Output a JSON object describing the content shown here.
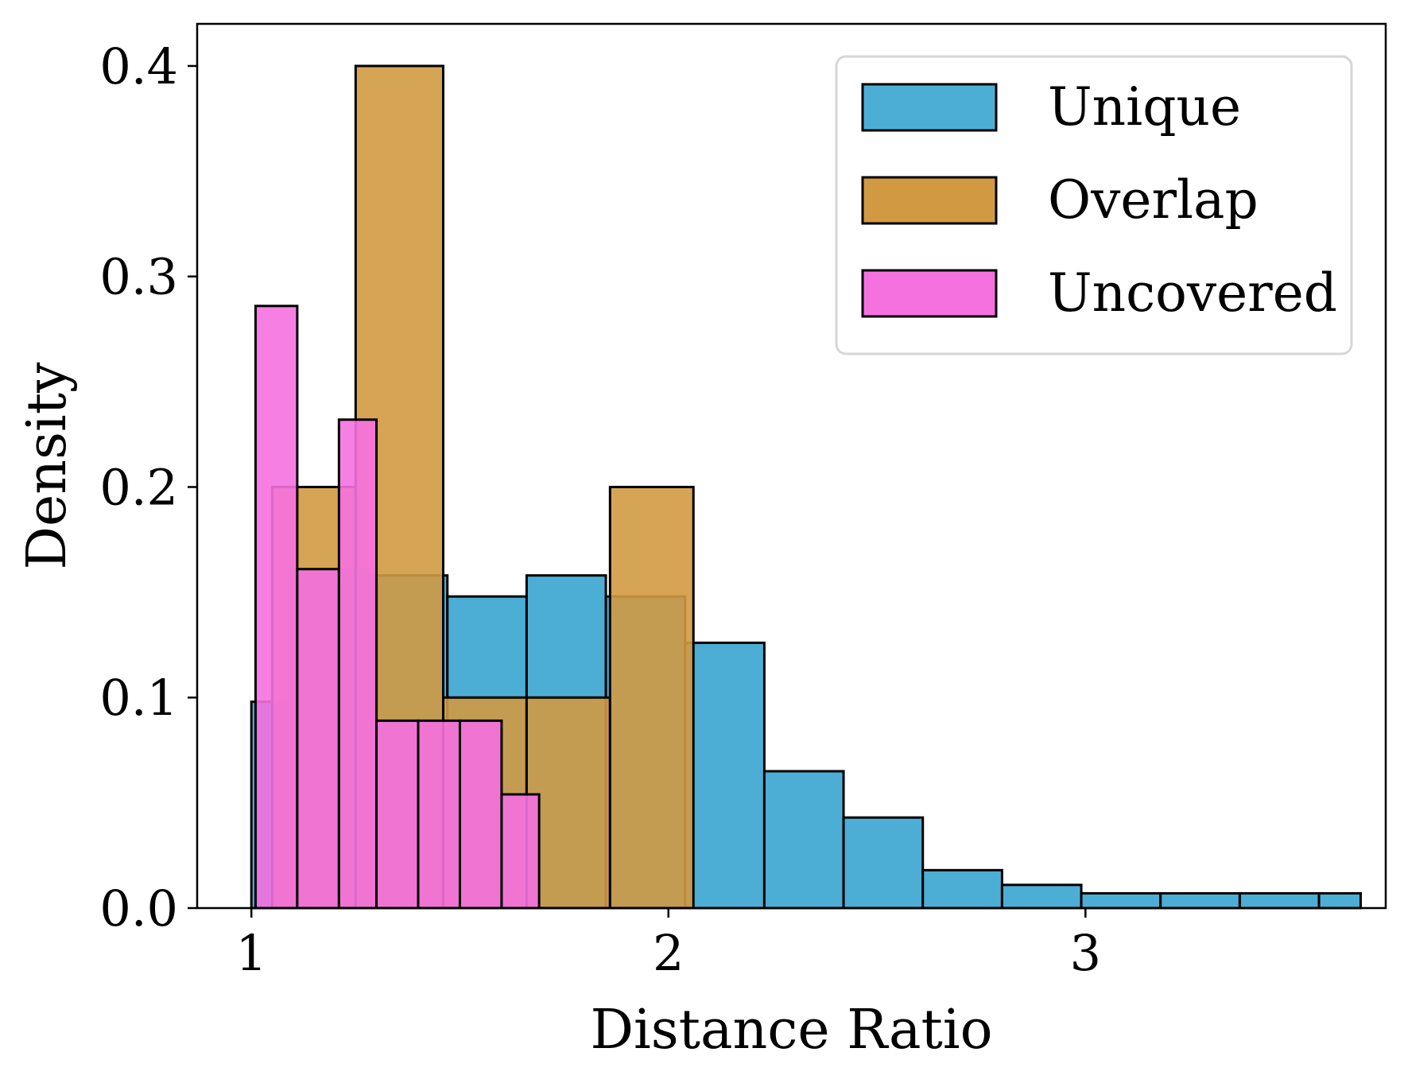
{
  "chart_data": {
    "type": "bar",
    "subtype": "histogram",
    "xlabel": "Distance Ratio",
    "ylabel": "Density",
    "xlim": [
      0.87,
      3.72
    ],
    "ylim": [
      0,
      0.42
    ],
    "xticks": [
      1,
      2,
      3
    ],
    "xtick_labels": [
      "1",
      "2",
      "3"
    ],
    "yticks": [
      0.0,
      0.1,
      0.2,
      0.3,
      0.4
    ],
    "ytick_labels": [
      "0.0",
      "0.1",
      "0.2",
      "0.3",
      "0.4"
    ],
    "grid": false,
    "legend_position": "top-right",
    "series": [
      {
        "name": "Unique",
        "color": "#4DAED5",
        "bins": [
          {
            "x0": 1.0,
            "x1": 1.09,
            "value": 0.098
          },
          {
            "x0": 1.09,
            "x1": 1.28,
            "value": 0.161
          },
          {
            "x0": 1.28,
            "x1": 1.47,
            "value": 0.158
          },
          {
            "x0": 1.47,
            "x1": 1.66,
            "value": 0.148
          },
          {
            "x0": 1.66,
            "x1": 1.85,
            "value": 0.158
          },
          {
            "x0": 1.85,
            "x1": 2.04,
            "value": 0.148
          },
          {
            "x0": 2.04,
            "x1": 2.23,
            "value": 0.126
          },
          {
            "x0": 2.23,
            "x1": 2.42,
            "value": 0.065
          },
          {
            "x0": 2.42,
            "x1": 2.61,
            "value": 0.043
          },
          {
            "x0": 2.61,
            "x1": 2.8,
            "value": 0.018
          },
          {
            "x0": 2.8,
            "x1": 2.99,
            "value": 0.011
          },
          {
            "x0": 2.99,
            "x1": 3.18,
            "value": 0.007
          },
          {
            "x0": 3.18,
            "x1": 3.37,
            "value": 0.007
          },
          {
            "x0": 3.37,
            "x1": 3.56,
            "value": 0.007
          },
          {
            "x0": 3.56,
            "x1": 3.66,
            "value": 0.007
          }
        ]
      },
      {
        "name": "Overlap",
        "color": "#D19A42",
        "bins": [
          {
            "x0": 1.05,
            "x1": 1.25,
            "value": 0.2
          },
          {
            "x0": 1.25,
            "x1": 1.46,
            "value": 0.4
          },
          {
            "x0": 1.46,
            "x1": 1.66,
            "value": 0.1
          },
          {
            "x0": 1.66,
            "x1": 1.86,
            "value": 0.1
          },
          {
            "x0": 1.86,
            "x1": 2.06,
            "value": 0.2
          }
        ]
      },
      {
        "name": "Uncovered",
        "color": "#F571E0",
        "bins": [
          {
            "x0": 1.01,
            "x1": 1.11,
            "value": 0.286
          },
          {
            "x0": 1.11,
            "x1": 1.21,
            "value": 0.161
          },
          {
            "x0": 1.21,
            "x1": 1.3,
            "value": 0.232
          },
          {
            "x0": 1.3,
            "x1": 1.4,
            "value": 0.089
          },
          {
            "x0": 1.4,
            "x1": 1.5,
            "value": 0.089
          },
          {
            "x0": 1.5,
            "x1": 1.6,
            "value": 0.089
          },
          {
            "x0": 1.6,
            "x1": 1.69,
            "value": 0.054
          }
        ]
      }
    ]
  }
}
